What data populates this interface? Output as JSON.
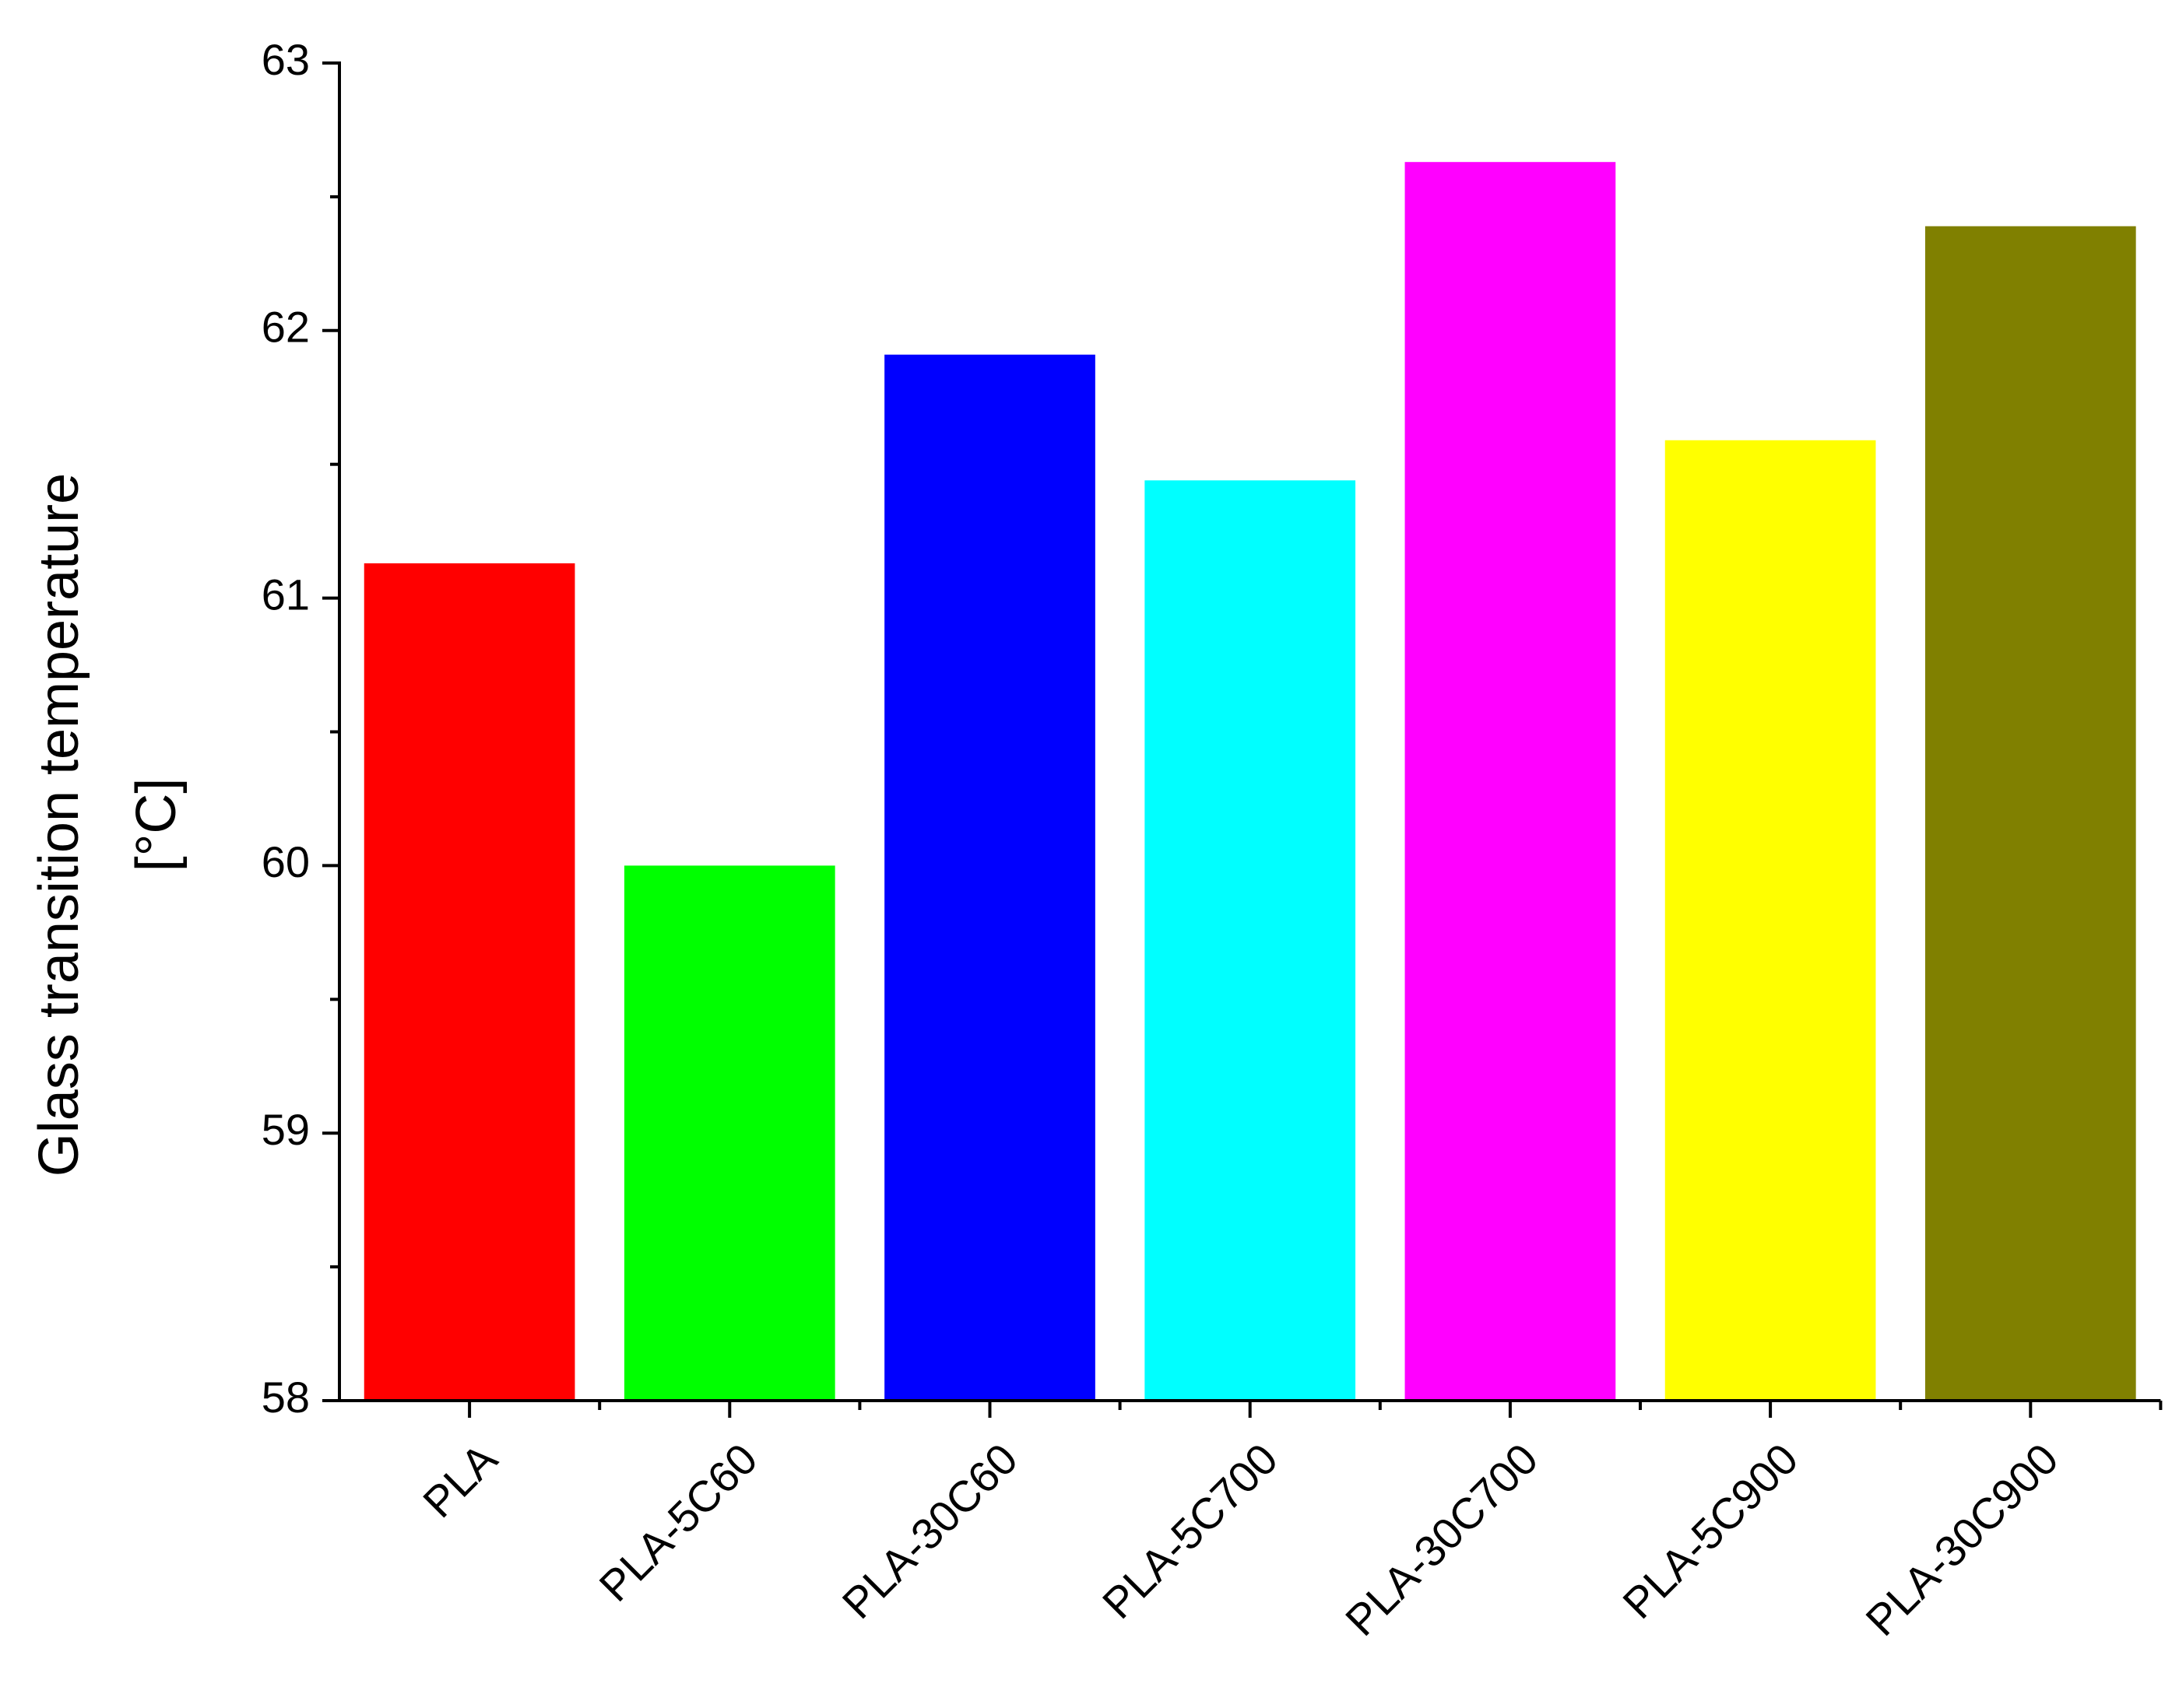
{
  "chart_data": {
    "type": "bar",
    "y_label": [
      "Glass transition temperature",
      "[°C]"
    ],
    "categories": [
      "PLA",
      "PLA-5C60",
      "PLA-30C60",
      "PLA-5C700",
      "PLA-30C700",
      "PLA-5C900",
      "PLA-30C900"
    ],
    "values": [
      61.13,
      60.0,
      61.91,
      61.44,
      62.63,
      61.59,
      62.39
    ],
    "colors": [
      "#ff0000",
      "#00ff00",
      "#0000ff",
      "#00ffff",
      "#ff00ff",
      "#ffff00",
      "#808000"
    ],
    "ylim": [
      58,
      63
    ],
    "yticks": [
      58,
      59,
      60,
      61,
      62,
      63
    ],
    "grid": false
  }
}
